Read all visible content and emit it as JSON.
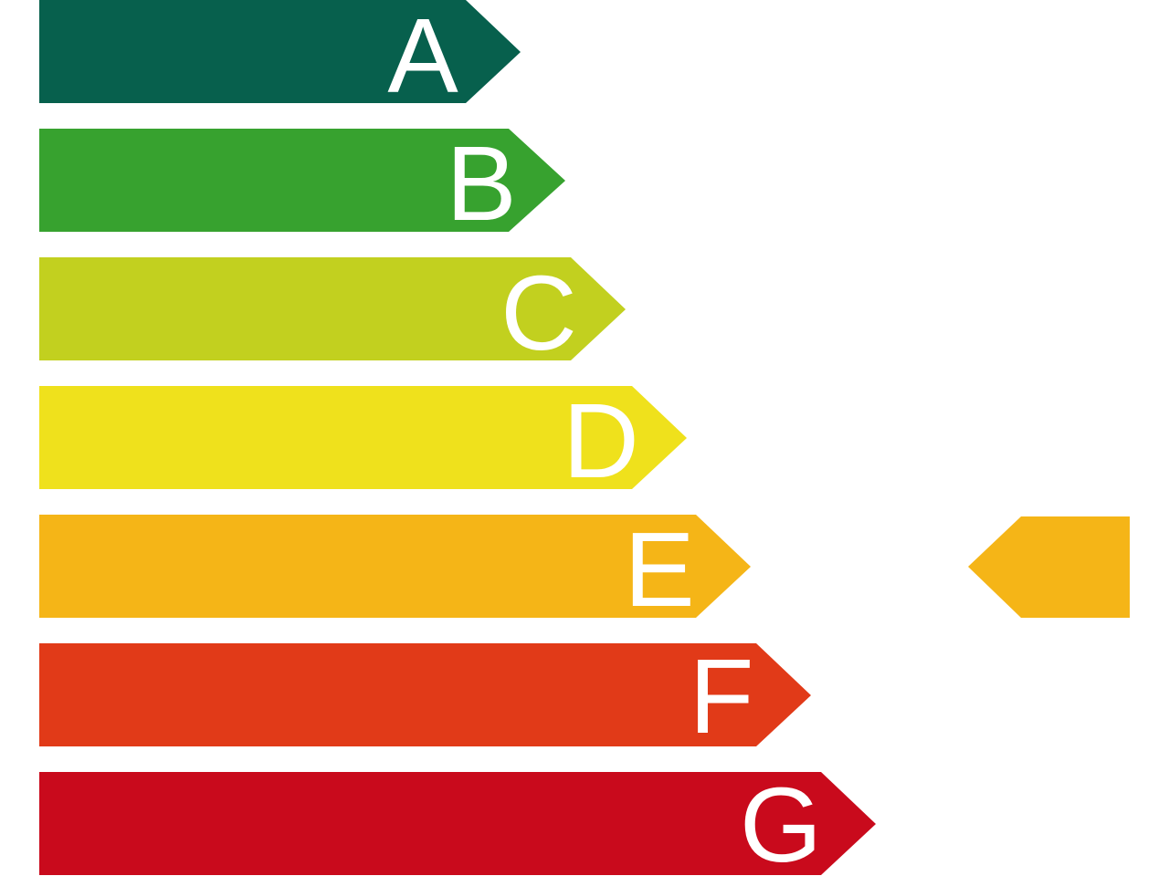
{
  "ratings": [
    "A",
    "B",
    "C",
    "D",
    "E",
    "F",
    "G"
  ]
}
